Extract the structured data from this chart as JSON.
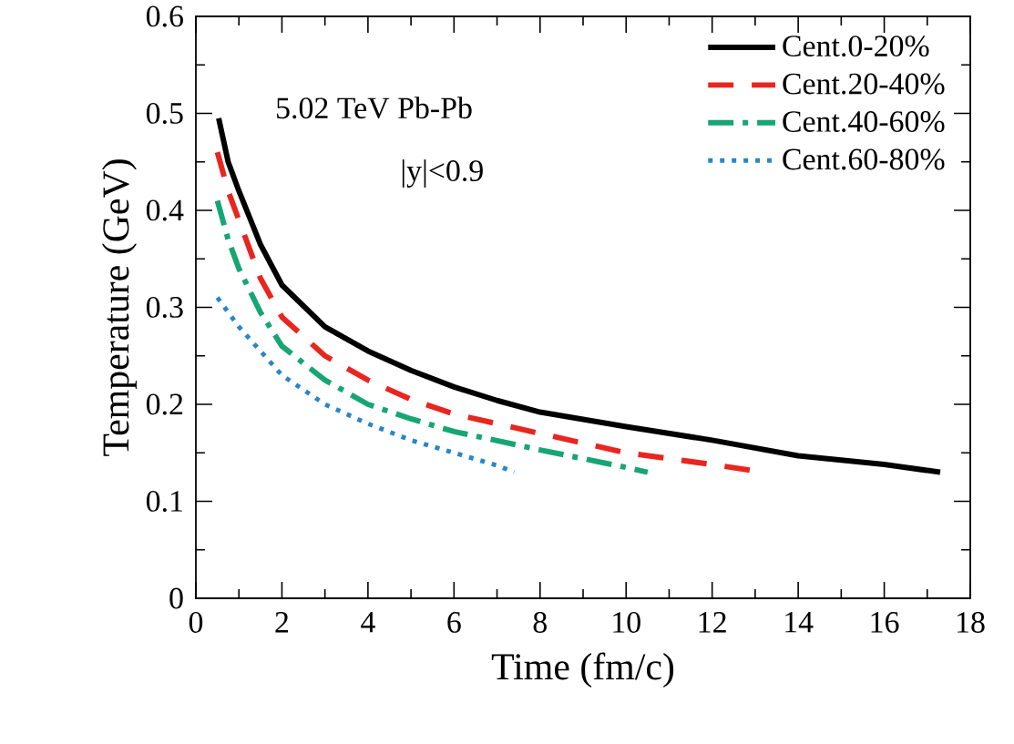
{
  "chart_data": {
    "type": "line",
    "xlabel": "Time  (fm/c)",
    "ylabel": "Temperature  (GeV)",
    "annotations": [
      "5.02 TeV  Pb-Pb",
      "|y|<0.9"
    ],
    "xlim": [
      0,
      18
    ],
    "ylim": [
      0,
      0.6
    ],
    "xticks": [
      0,
      2,
      4,
      6,
      8,
      10,
      12,
      14,
      16,
      18
    ],
    "yticks": [
      0,
      0.1,
      0.2,
      0.3,
      0.4,
      0.5,
      0.6
    ],
    "legend": "top right",
    "grid": false,
    "marker": "none",
    "series": [
      {
        "name": "Cent.0-20%",
        "color": "#000000",
        "line_style": "solid",
        "x": [
          0.53,
          0.75,
          1,
          1.5,
          2,
          3,
          4,
          5,
          6,
          7,
          8,
          10,
          12,
          14,
          16,
          17.3
        ],
        "values": [
          0.495,
          0.45,
          0.42,
          0.365,
          0.323,
          0.28,
          0.255,
          0.235,
          0.218,
          0.204,
          0.192,
          0.177,
          0.163,
          0.147,
          0.138,
          0.13
        ]
      },
      {
        "name": "Cent.20-40%",
        "color": "#e8251f",
        "line_style": "dashed",
        "x": [
          0.5,
          0.75,
          1,
          1.5,
          2,
          3,
          4,
          5,
          6,
          8,
          10,
          12,
          12.9
        ],
        "values": [
          0.46,
          0.42,
          0.39,
          0.33,
          0.29,
          0.25,
          0.225,
          0.205,
          0.19,
          0.17,
          0.15,
          0.138,
          0.132
        ]
      },
      {
        "name": "Cent.40-60%",
        "color": "#17a673",
        "line_style": "dashdot",
        "x": [
          0.5,
          0.75,
          1,
          1.5,
          2,
          3,
          4,
          5,
          6,
          8,
          10,
          10.5
        ],
        "values": [
          0.41,
          0.37,
          0.34,
          0.295,
          0.26,
          0.225,
          0.2,
          0.185,
          0.172,
          0.153,
          0.135,
          0.13
        ]
      },
      {
        "name": "Cent.60-80%",
        "color": "#2a86c6",
        "line_style": "dotted",
        "x": [
          0.5,
          1,
          1.5,
          2,
          3,
          4,
          5,
          6,
          7,
          7.4
        ],
        "values": [
          0.31,
          0.28,
          0.255,
          0.23,
          0.2,
          0.18,
          0.163,
          0.15,
          0.137,
          0.13
        ]
      }
    ]
  }
}
